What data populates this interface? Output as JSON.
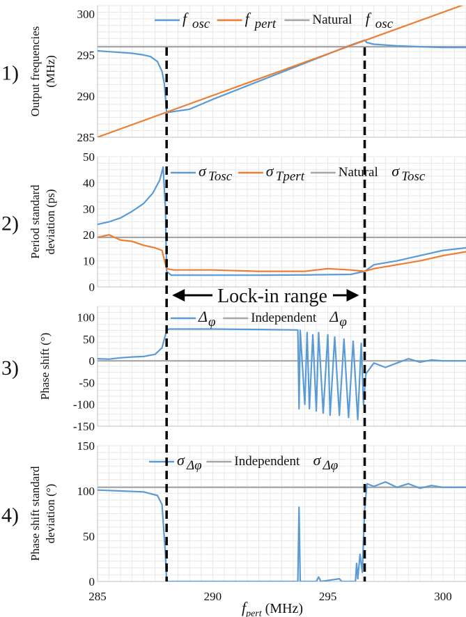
{
  "colors": {
    "blue": "#5b9bd5",
    "orange": "#ed7d31",
    "gray": "#a6a6a6",
    "grid": "#e7e7e7",
    "dash": "#000000"
  },
  "chart_data": {
    "type": "line",
    "x": {
      "label_main": "f",
      "label_sub": "pert",
      "label_unit": " (MHz)",
      "lim": [
        285,
        301
      ],
      "ticks": [
        285,
        290,
        295,
        300
      ],
      "tick_labels": [
        "285",
        "290",
        "295",
        "300"
      ]
    },
    "lock_in": {
      "label": "Lock-in range",
      "start": 288,
      "end": 296.6
    },
    "panels": [
      {
        "number": "1)",
        "ylabel": [
          "Output frequencies",
          "(MHz)"
        ],
        "ylim": [
          285,
          301
        ],
        "yticks": [
          285,
          290,
          295,
          300
        ],
        "ytick_labels": [
          "285",
          "290",
          "295",
          "300"
        ],
        "legend": [
          {
            "sym": "f",
            "sub": "osc",
            "pre": "",
            "color": "blue"
          },
          {
            "sym": "f",
            "sub": "pert",
            "pre": "",
            "color": "orange"
          },
          {
            "sym": "f",
            "sub": "osc",
            "pre": "Natural",
            "color": "gray"
          }
        ],
        "series": [
          {
            "color": "blue",
            "points": [
              [
                285,
                295.5
              ],
              [
                285.5,
                295.4
              ],
              [
                286,
                295.3
              ],
              [
                286.5,
                295.2
              ],
              [
                287,
                295.0
              ],
              [
                287.3,
                294.8
              ],
              [
                287.6,
                294.2
              ],
              [
                287.8,
                293.0
              ],
              [
                287.9,
                291.5
              ],
              [
                288.0,
                288.0
              ],
              [
                289,
                288.4
              ],
              [
                290,
                289.6
              ],
              [
                291,
                290.7
              ],
              [
                292,
                291.8
              ],
              [
                293,
                292.9
              ],
              [
                294,
                294.0
              ],
              [
                295,
                295.1
              ],
              [
                296,
                296.2
              ],
              [
                296.6,
                296.8
              ],
              [
                296.7,
                296.5
              ],
              [
                297,
                296.3
              ],
              [
                298,
                296.1
              ],
              [
                299,
                296.0
              ],
              [
                300,
                295.9
              ],
              [
                301,
                295.9
              ]
            ]
          },
          {
            "color": "orange",
            "points": [
              [
                285,
                285.0
              ],
              [
                301,
                301.2
              ]
            ]
          },
          {
            "color": "gray",
            "points": [
              [
                285,
                296.0
              ],
              [
                301,
                296.0
              ]
            ]
          }
        ]
      },
      {
        "number": "2)",
        "ylabel": [
          "Period standard",
          "deviation (ps)"
        ],
        "ylim": [
          0,
          50
        ],
        "yticks": [
          0,
          10,
          20,
          30,
          40,
          50
        ],
        "ytick_labels": [
          "0",
          "10",
          "20",
          "30",
          "40",
          "50"
        ],
        "legend": [
          {
            "sym": "σ",
            "sub": "Tosc",
            "pre": "",
            "color": "blue"
          },
          {
            "sym": "σ",
            "sub": "Tpert",
            "pre": "",
            "color": "orange"
          },
          {
            "sym": "σ",
            "sub": "Tosc",
            "pre": "Natural",
            "color": "gray"
          }
        ],
        "series": [
          {
            "color": "blue",
            "points": [
              [
                285,
                24
              ],
              [
                285.5,
                25
              ],
              [
                286,
                26.5
              ],
              [
                286.5,
                29
              ],
              [
                287,
                32
              ],
              [
                287.4,
                36
              ],
              [
                287.7,
                41
              ],
              [
                287.85,
                46
              ],
              [
                287.95,
                30
              ],
              [
                288.0,
                6
              ],
              [
                288.2,
                4.5
              ],
              [
                290,
                4.5
              ],
              [
                292,
                4.5
              ],
              [
                294,
                4.6
              ],
              [
                296,
                4.8
              ],
              [
                296.6,
                6
              ],
              [
                297,
                8.5
              ],
              [
                298,
                10
              ],
              [
                299,
                12
              ],
              [
                300,
                14
              ],
              [
                301,
                15
              ]
            ]
          },
          {
            "color": "orange",
            "points": [
              [
                285,
                19
              ],
              [
                285.5,
                20
              ],
              [
                286,
                18
              ],
              [
                286.5,
                17.5
              ],
              [
                287,
                16
              ],
              [
                287.5,
                15
              ],
              [
                287.8,
                14
              ],
              [
                288.0,
                7
              ],
              [
                288.3,
                6.5
              ],
              [
                290,
                6.5
              ],
              [
                292,
                6
              ],
              [
                294,
                6
              ],
              [
                295,
                7
              ],
              [
                296,
                6.5
              ],
              [
                296.6,
                6
              ],
              [
                297,
                7
              ],
              [
                298,
                8.5
              ],
              [
                299,
                10
              ],
              [
                300,
                12
              ],
              [
                301,
                13.5
              ]
            ]
          },
          {
            "color": "gray",
            "points": [
              [
                285,
                19
              ],
              [
                301,
                19
              ]
            ]
          }
        ]
      },
      {
        "number": "3)",
        "ylabel": [
          "Phase shift (°)"
        ],
        "ylim": [
          -150,
          125
        ],
        "yticks": [
          -150,
          -100,
          -50,
          0,
          50,
          100
        ],
        "ytick_labels": [
          "-150",
          "-100",
          "-50",
          "0",
          "50",
          "100"
        ],
        "legend": [
          {
            "sym": "Δ",
            "sub": "φ",
            "pre": "",
            "color": "blue"
          },
          {
            "sym": "Δ",
            "sub": "φ",
            "pre": "Independent",
            "color": "gray"
          }
        ],
        "series": [
          {
            "color": "blue",
            "points": [
              [
                285,
                5
              ],
              [
                285.5,
                4
              ],
              [
                286,
                7
              ],
              [
                286.5,
                9
              ],
              [
                287,
                10
              ],
              [
                287.5,
                15
              ],
              [
                287.8,
                30
              ],
              [
                288.0,
                70
              ],
              [
                288.1,
                73
              ],
              [
                290,
                73
              ],
              [
                292,
                72
              ],
              [
                293.7,
                71
              ],
              [
                293.75,
                -110
              ],
              [
                293.8,
                70
              ],
              [
                294.0,
                -100
              ],
              [
                294.1,
                65
              ],
              [
                294.2,
                -110
              ],
              [
                294.35,
                60
              ],
              [
                294.5,
                -115
              ],
              [
                294.6,
                65
              ],
              [
                294.8,
                -120
              ],
              [
                295.0,
                60
              ],
              [
                295.1,
                -125
              ],
              [
                295.3,
                55
              ],
              [
                295.5,
                -125
              ],
              [
                295.7,
                50
              ],
              [
                295.9,
                -130
              ],
              [
                296.1,
                45
              ],
              [
                296.3,
                -135
              ],
              [
                296.45,
                40
              ],
              [
                296.55,
                -100
              ],
              [
                296.65,
                -30
              ],
              [
                297,
                -5
              ],
              [
                297.5,
                -15
              ],
              [
                298,
                -5
              ],
              [
                298.5,
                5
              ],
              [
                299,
                -3
              ],
              [
                299.5,
                2
              ],
              [
                300,
                0
              ],
              [
                301,
                0
              ]
            ]
          },
          {
            "color": "gray",
            "points": [
              [
                285,
                0
              ],
              [
                301,
                0
              ]
            ]
          }
        ]
      },
      {
        "number": "4)",
        "ylabel": [
          "Phase shift standard",
          "deviation (°)"
        ],
        "ylim": [
          0,
          150
        ],
        "yticks": [
          0,
          50,
          100,
          150
        ],
        "ytick_labels": [
          "0",
          "50",
          "100",
          "150"
        ],
        "legend": [
          {
            "sym": "σ",
            "sub": "Δφ",
            "pre": "",
            "color": "blue"
          },
          {
            "sym": "σ",
            "sub": "Δφ",
            "pre": "Independent",
            "color": "gray"
          }
        ],
        "series": [
          {
            "color": "blue",
            "points": [
              [
                285,
                101
              ],
              [
                286,
                100
              ],
              [
                287,
                99
              ],
              [
                287.6,
                95
              ],
              [
                287.8,
                85
              ],
              [
                287.95,
                30
              ],
              [
                288.0,
                0
              ],
              [
                290,
                0
              ],
              [
                292,
                0
              ],
              [
                293.7,
                0
              ],
              [
                293.75,
                82
              ],
              [
                293.8,
                0
              ],
              [
                294.5,
                0
              ],
              [
                294.6,
                5
              ],
              [
                294.7,
                0
              ],
              [
                295.5,
                3
              ],
              [
                295.6,
                0
              ],
              [
                296.2,
                0
              ],
              [
                296.25,
                20
              ],
              [
                296.3,
                3
              ],
              [
                296.4,
                30
              ],
              [
                296.5,
                10
              ],
              [
                296.6,
                80
              ],
              [
                296.7,
                108
              ],
              [
                297,
                105
              ],
              [
                297.5,
                110
              ],
              [
                298,
                104
              ],
              [
                298.5,
                108
              ],
              [
                299,
                103
              ],
              [
                299.5,
                106
              ],
              [
                300,
                104
              ],
              [
                301,
                104
              ]
            ]
          },
          {
            "color": "gray",
            "points": [
              [
                285,
                104
              ],
              [
                301,
                104
              ]
            ]
          }
        ]
      }
    ]
  }
}
